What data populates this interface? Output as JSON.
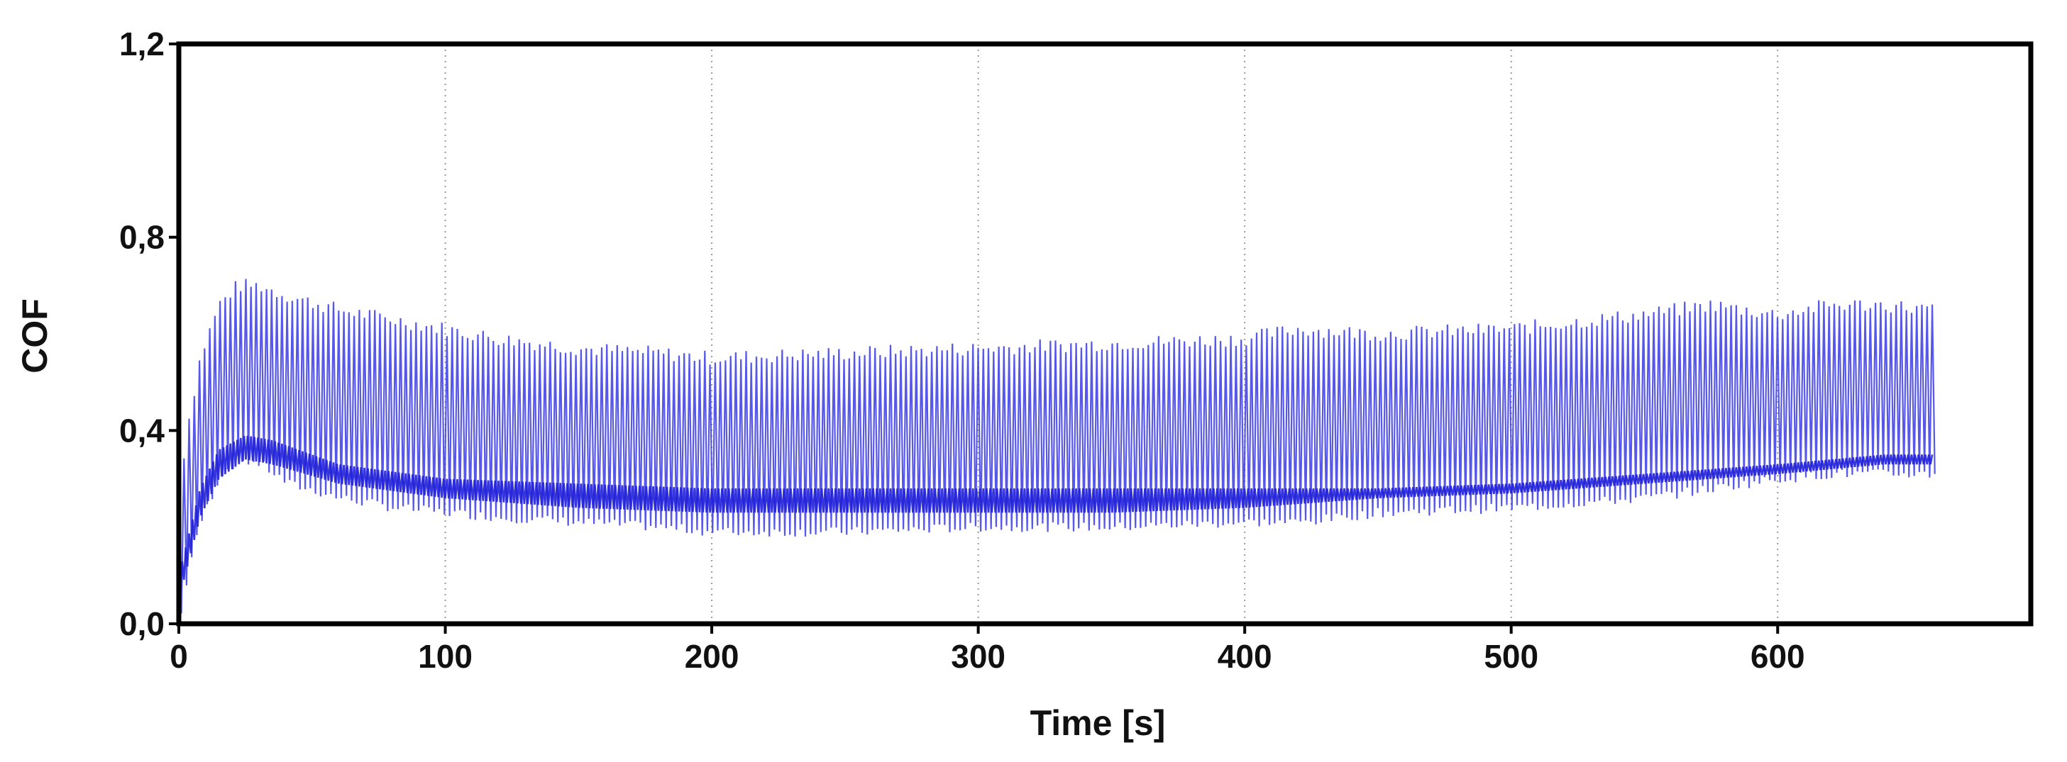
{
  "chart_data": {
    "type": "line",
    "title": "",
    "xlabel": "Time [s]",
    "ylabel": "COF",
    "xlim": [
      0,
      695
    ],
    "ylim": [
      0.0,
      1.2
    ],
    "x_ticks": [
      0,
      100,
      200,
      300,
      400,
      500,
      600
    ],
    "x_tick_labels": [
      "0",
      "100",
      "200",
      "300",
      "400",
      "500",
      "600"
    ],
    "y_ticks": [
      0.0,
      0.4,
      0.8,
      1.2
    ],
    "y_tick_labels": [
      "0,0",
      "0,4",
      "0,8",
      "1,2"
    ],
    "grid": {
      "x": true,
      "y": false,
      "style": "dotted"
    },
    "legend": "none",
    "series_color": "#3a3ae6",
    "oscillation": {
      "x_start": 0,
      "x_end": 658,
      "cycles": 340,
      "envelope": {
        "x": [
          0,
          3,
          8,
          15,
          22,
          30,
          40,
          60,
          80,
          100,
          120,
          150,
          180,
          200,
          250,
          300,
          350,
          400,
          420,
          450,
          500,
          550,
          575,
          600,
          620,
          640,
          658
        ],
        "upper": [
          0.27,
          0.4,
          0.55,
          0.66,
          0.7,
          0.7,
          0.68,
          0.65,
          0.63,
          0.61,
          0.59,
          0.57,
          0.56,
          0.55,
          0.56,
          0.57,
          0.58,
          0.59,
          0.61,
          0.6,
          0.61,
          0.64,
          0.66,
          0.64,
          0.66,
          0.66,
          0.65
        ],
        "lower": [
          0.02,
          0.12,
          0.22,
          0.31,
          0.34,
          0.33,
          0.29,
          0.26,
          0.24,
          0.23,
          0.22,
          0.21,
          0.2,
          0.19,
          0.19,
          0.2,
          0.2,
          0.21,
          0.21,
          0.23,
          0.24,
          0.26,
          0.28,
          0.3,
          0.31,
          0.31,
          0.31
        ]
      },
      "dense_band": {
        "x": [
          0,
          8,
          15,
          25,
          35,
          60,
          100,
          150,
          200,
          250,
          300,
          350,
          400,
          450,
          500,
          550,
          600,
          640,
          658
        ],
        "upper": [
          0.1,
          0.28,
          0.36,
          0.39,
          0.38,
          0.33,
          0.3,
          0.29,
          0.28,
          0.28,
          0.28,
          0.28,
          0.28,
          0.28,
          0.29,
          0.31,
          0.33,
          0.35,
          0.35
        ],
        "lower": [
          0.05,
          0.22,
          0.3,
          0.34,
          0.33,
          0.29,
          0.26,
          0.24,
          0.23,
          0.23,
          0.23,
          0.23,
          0.24,
          0.26,
          0.27,
          0.29,
          0.31,
          0.33,
          0.33
        ]
      }
    }
  }
}
